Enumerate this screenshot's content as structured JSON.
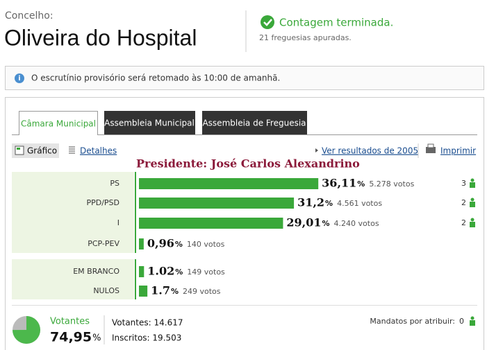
{
  "header": {
    "label": "Concelho:",
    "title": "Oliveira do Hospital",
    "status": "Contagem terminada.",
    "substatus": "21 freguesias apuradas."
  },
  "notice": "O escrutínio provisório será retomado às 10:00 de amanhã.",
  "tabs": [
    "Câmara Municipal",
    "Assembleia Municipal",
    "Assembleia de Freguesia"
  ],
  "toolbar": {
    "chart": "Gráfico",
    "details": "Detalhes",
    "previous": "Ver resultados de 2005",
    "print": "Imprimir"
  },
  "annotation": "Presidente: José Carlos Alexandrino",
  "results": {
    "unit": "%",
    "color": "#3aa83a",
    "rows": [
      {
        "name": "PS",
        "value": 36.11,
        "value_label": "36,11",
        "votes": "5.278 votos",
        "mandates": 3
      },
      {
        "name": "PPD/PSD",
        "value": 31.2,
        "value_label": "31,2",
        "votes": "4.561 votos",
        "mandates": 2
      },
      {
        "name": "I",
        "value": 29.01,
        "value_label": "29,01",
        "votes": "4.240 votos",
        "mandates": 2
      },
      {
        "name": "PCP-PEV",
        "value": 0.96,
        "value_label": "0,96",
        "votes": "140 votos"
      }
    ],
    "other": [
      {
        "name": "EM BRANCO",
        "value": 1.02,
        "value_label": "1.02",
        "votes": "149 votos"
      },
      {
        "name": "NULOS",
        "value": 1.7,
        "value_label": "1.7",
        "votes": "249 votos"
      }
    ]
  },
  "turnout": {
    "label": "Votantes",
    "value": 74.95,
    "value_label": "74,95",
    "unit": "%",
    "voters": "Votantes: 14.617",
    "registered": "Inscritos: 19.503",
    "pending_label": "Mandatos por atribuir:",
    "pending": 0
  }
}
